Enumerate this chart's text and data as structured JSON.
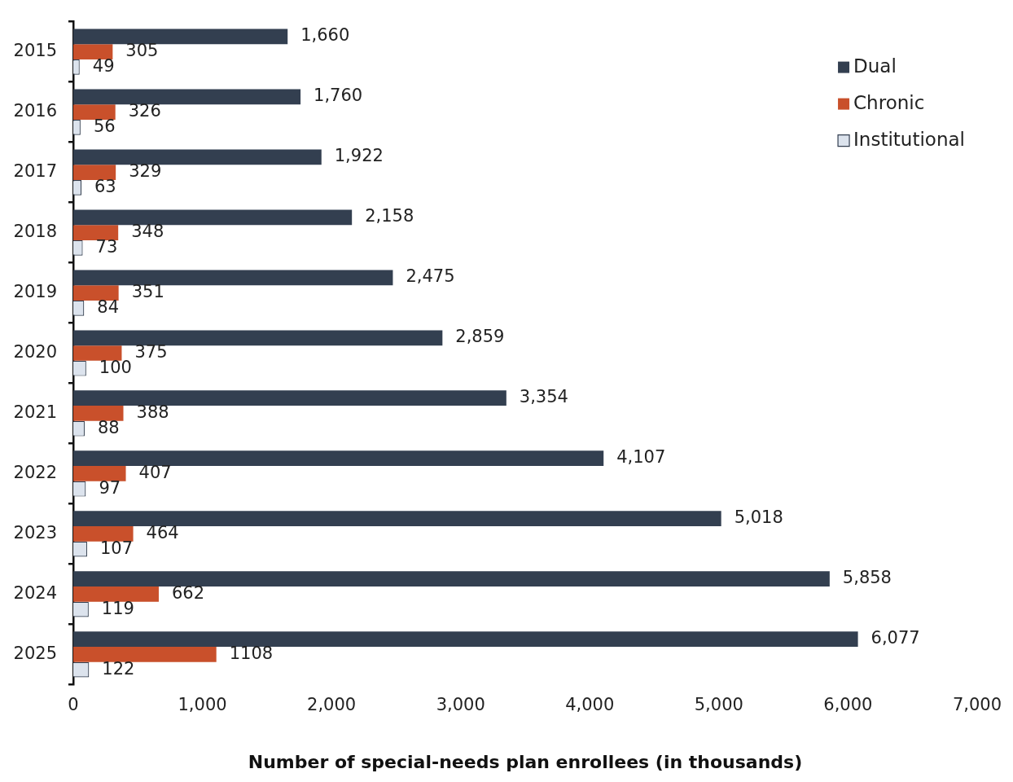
{
  "chart_data": {
    "type": "bar",
    "orientation": "horizontal",
    "xlabel": "Number of special-needs plan enrollees (in thousands)",
    "categories": [
      "2015",
      "2016",
      "2017",
      "2018",
      "2019",
      "2020",
      "2021",
      "2022",
      "2023",
      "2024",
      "2025"
    ],
    "series": [
      {
        "name": "Dual",
        "color": "#333f50",
        "values": [
          1660,
          1760,
          1922,
          2158,
          2475,
          2859,
          3354,
          4107,
          5018,
          5858,
          6077
        ],
        "value_labels": [
          "1,660",
          "1,760",
          "1,922",
          "2,158",
          "2,475",
          "2,859",
          "3,354",
          "4,107",
          "5,018",
          "5,858",
          "6,077"
        ]
      },
      {
        "name": "Chronic",
        "color": "#c9502b",
        "values": [
          305,
          326,
          329,
          348,
          351,
          375,
          388,
          407,
          464,
          662,
          1108
        ],
        "value_labels": [
          "305",
          "326",
          "329",
          "348",
          "351",
          "375",
          "388",
          "407",
          "464",
          "662",
          "1108"
        ]
      },
      {
        "name": "Institutional",
        "color": "#dce3ed",
        "values": [
          49,
          56,
          63,
          73,
          84,
          100,
          88,
          97,
          107,
          119,
          122
        ],
        "value_labels": [
          "49",
          "56",
          "63",
          "73",
          "84",
          "100",
          "88",
          "97",
          "107",
          "119",
          "122"
        ]
      }
    ],
    "xlim": [
      0,
      7000
    ],
    "xticks": [
      {
        "value": 0,
        "label": "0"
      },
      {
        "value": 1000,
        "label": "1,000"
      },
      {
        "value": 2000,
        "label": "2,000"
      },
      {
        "value": 3000,
        "label": "3,000"
      },
      {
        "value": 4000,
        "label": "4,000"
      },
      {
        "value": 5000,
        "label": "5,000"
      },
      {
        "value": 6000,
        "label": "6,000"
      },
      {
        "value": 7000,
        "label": "7,000"
      }
    ],
    "legend": "top right",
    "grid": false
  }
}
